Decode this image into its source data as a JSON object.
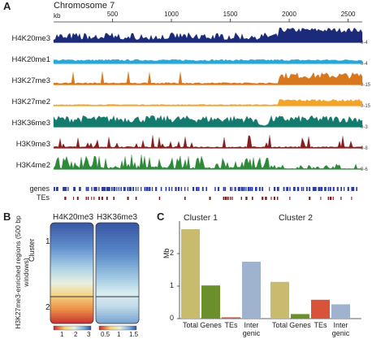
{
  "panel_a": {
    "letter": "A",
    "chromosome": "Chromosome 7",
    "axis_unit": "kb",
    "axis_ticks": [
      "500",
      "1000",
      "1500",
      "2000",
      "2500"
    ],
    "tracks": [
      {
        "label": "H4K20me3",
        "range": "0-4",
        "color": "#1b2a7a"
      },
      {
        "label": "H4K20me1",
        "range": "0-4",
        "color": "#2aa7d6"
      },
      {
        "label": "H3K27me3",
        "range": "0-15",
        "color": "#d9771c"
      },
      {
        "label": "H3K27me2",
        "range": "0-15",
        "color": "#f2a32a"
      },
      {
        "label": "H3K36me3",
        "range": "0-3",
        "color": "#137a6e"
      },
      {
        "label": "H3K9me3",
        "range": "0-8",
        "color": "#8a1c1c"
      },
      {
        "label": "H3K4me2",
        "range": "0-6",
        "color": "#2e8a3a"
      }
    ],
    "annotations": [
      "genes",
      "TEs"
    ]
  },
  "panel_b": {
    "letter": "B",
    "ylabel": "H3K27me3-enriched regions (500 bp windows)",
    "cluster_label": "Cluster",
    "cluster_numbers": [
      "1",
      "2"
    ],
    "heatmaps": [
      {
        "title": "H4K20me3",
        "scale_ticks": [
          "1",
          "2",
          "3"
        ]
      },
      {
        "title": "H3K36me3",
        "scale_ticks": [
          "0.5",
          "1",
          "1.5"
        ]
      }
    ]
  },
  "panel_c": {
    "letter": "C",
    "chart_data": {
      "type": "bar",
      "ylabel": "Mb",
      "ylim": [
        0,
        3
      ],
      "yticks": [
        "0",
        "1",
        "2"
      ],
      "groups": [
        {
          "title": "Cluster 1",
          "categories": [
            "Total",
            "Genes",
            "TEs",
            "Inter genic"
          ],
          "values": [
            2.75,
            1.02,
            0.04,
            1.75
          ]
        },
        {
          "title": "Cluster 2",
          "categories": [
            "Total",
            "Genes",
            "TEs",
            "Inter genic"
          ],
          "values": [
            1.13,
            0.14,
            0.58,
            0.44
          ]
        }
      ],
      "colors": [
        "#c8bb6e",
        "#6b8f2a",
        "#d9533a",
        "#9fb3cf"
      ]
    }
  }
}
